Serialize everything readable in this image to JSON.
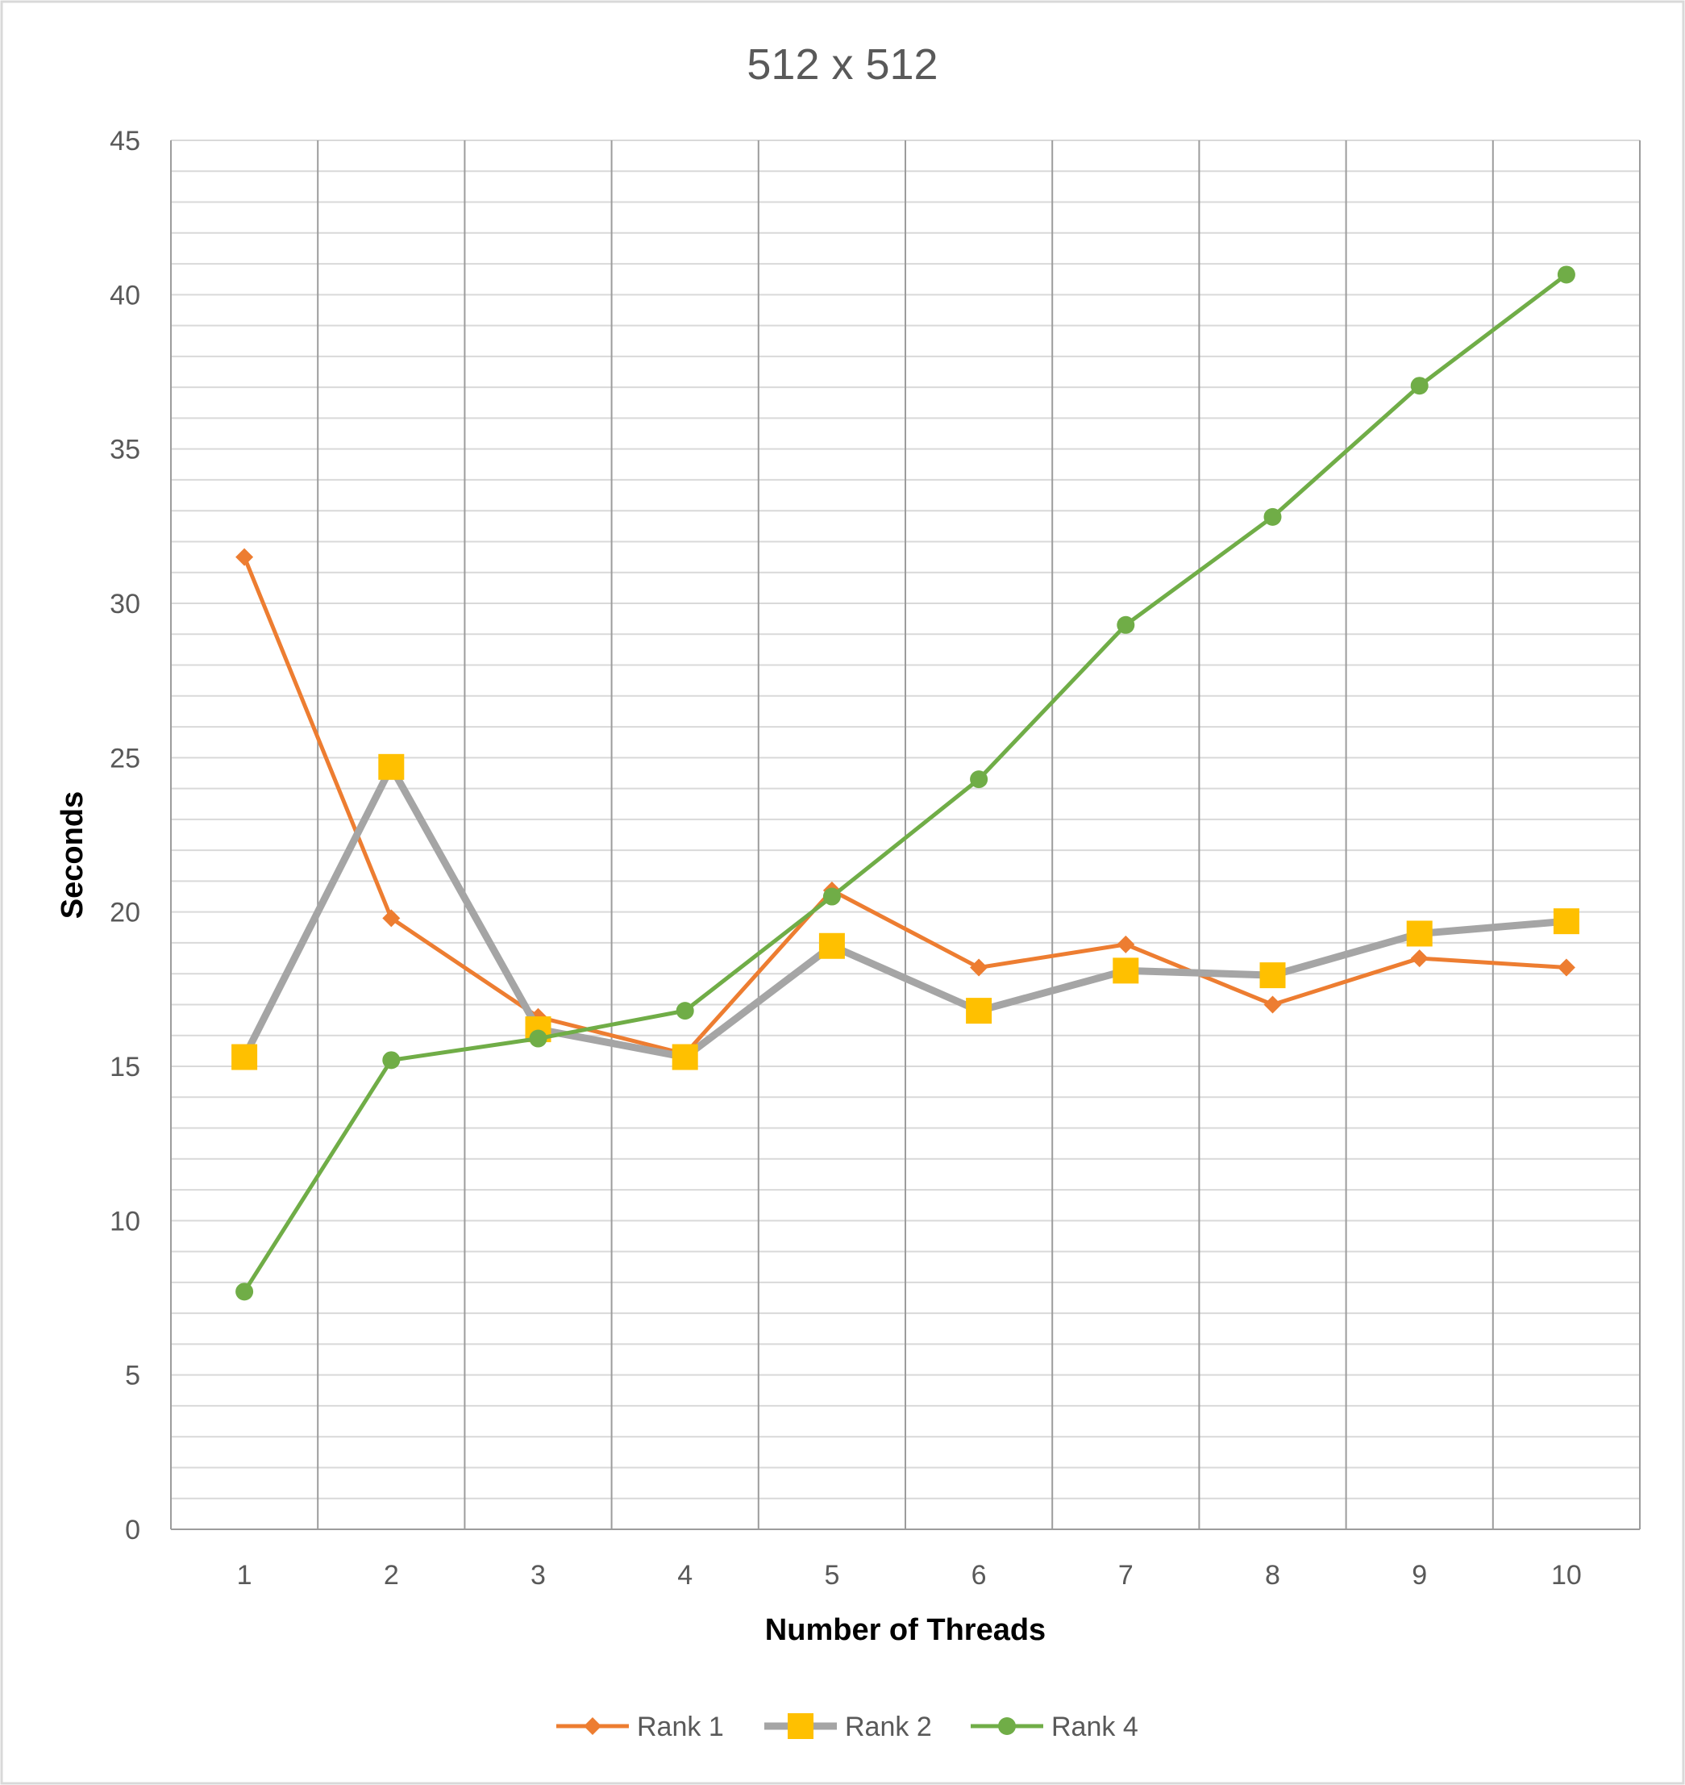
{
  "chart_data": {
    "type": "line",
    "title": "512 x 512",
    "xlabel": "Number of Threads",
    "ylabel": "Seconds",
    "categories": [
      "1",
      "2",
      "3",
      "4",
      "5",
      "6",
      "7",
      "8",
      "9",
      "10"
    ],
    "ylim": [
      0,
      45
    ],
    "y_ticks": [
      "0",
      "5",
      "10",
      "15",
      "20",
      "25",
      "30",
      "35",
      "40",
      "45"
    ],
    "y_minor_step": 1,
    "grid": true,
    "legend_position": "bottom",
    "series": [
      {
        "name": "Rank 1",
        "color": "#ed7d31",
        "marker": "diamond",
        "values": [
          31.5,
          19.8,
          16.6,
          15.4,
          20.7,
          18.2,
          18.95,
          17.0,
          18.5,
          18.2
        ]
      },
      {
        "name": "Rank 2",
        "color": "#a5a5a5",
        "marker": "square",
        "marker_color": "#ffc000",
        "values": [
          15.3,
          24.7,
          16.2,
          15.3,
          18.9,
          16.8,
          18.1,
          17.95,
          19.3,
          19.7
        ]
      },
      {
        "name": "Rank 4",
        "color": "#70ad47",
        "marker": "circle",
        "values": [
          7.7,
          15.2,
          15.9,
          16.8,
          20.5,
          24.3,
          29.3,
          32.8,
          37.05,
          40.65
        ]
      }
    ]
  }
}
